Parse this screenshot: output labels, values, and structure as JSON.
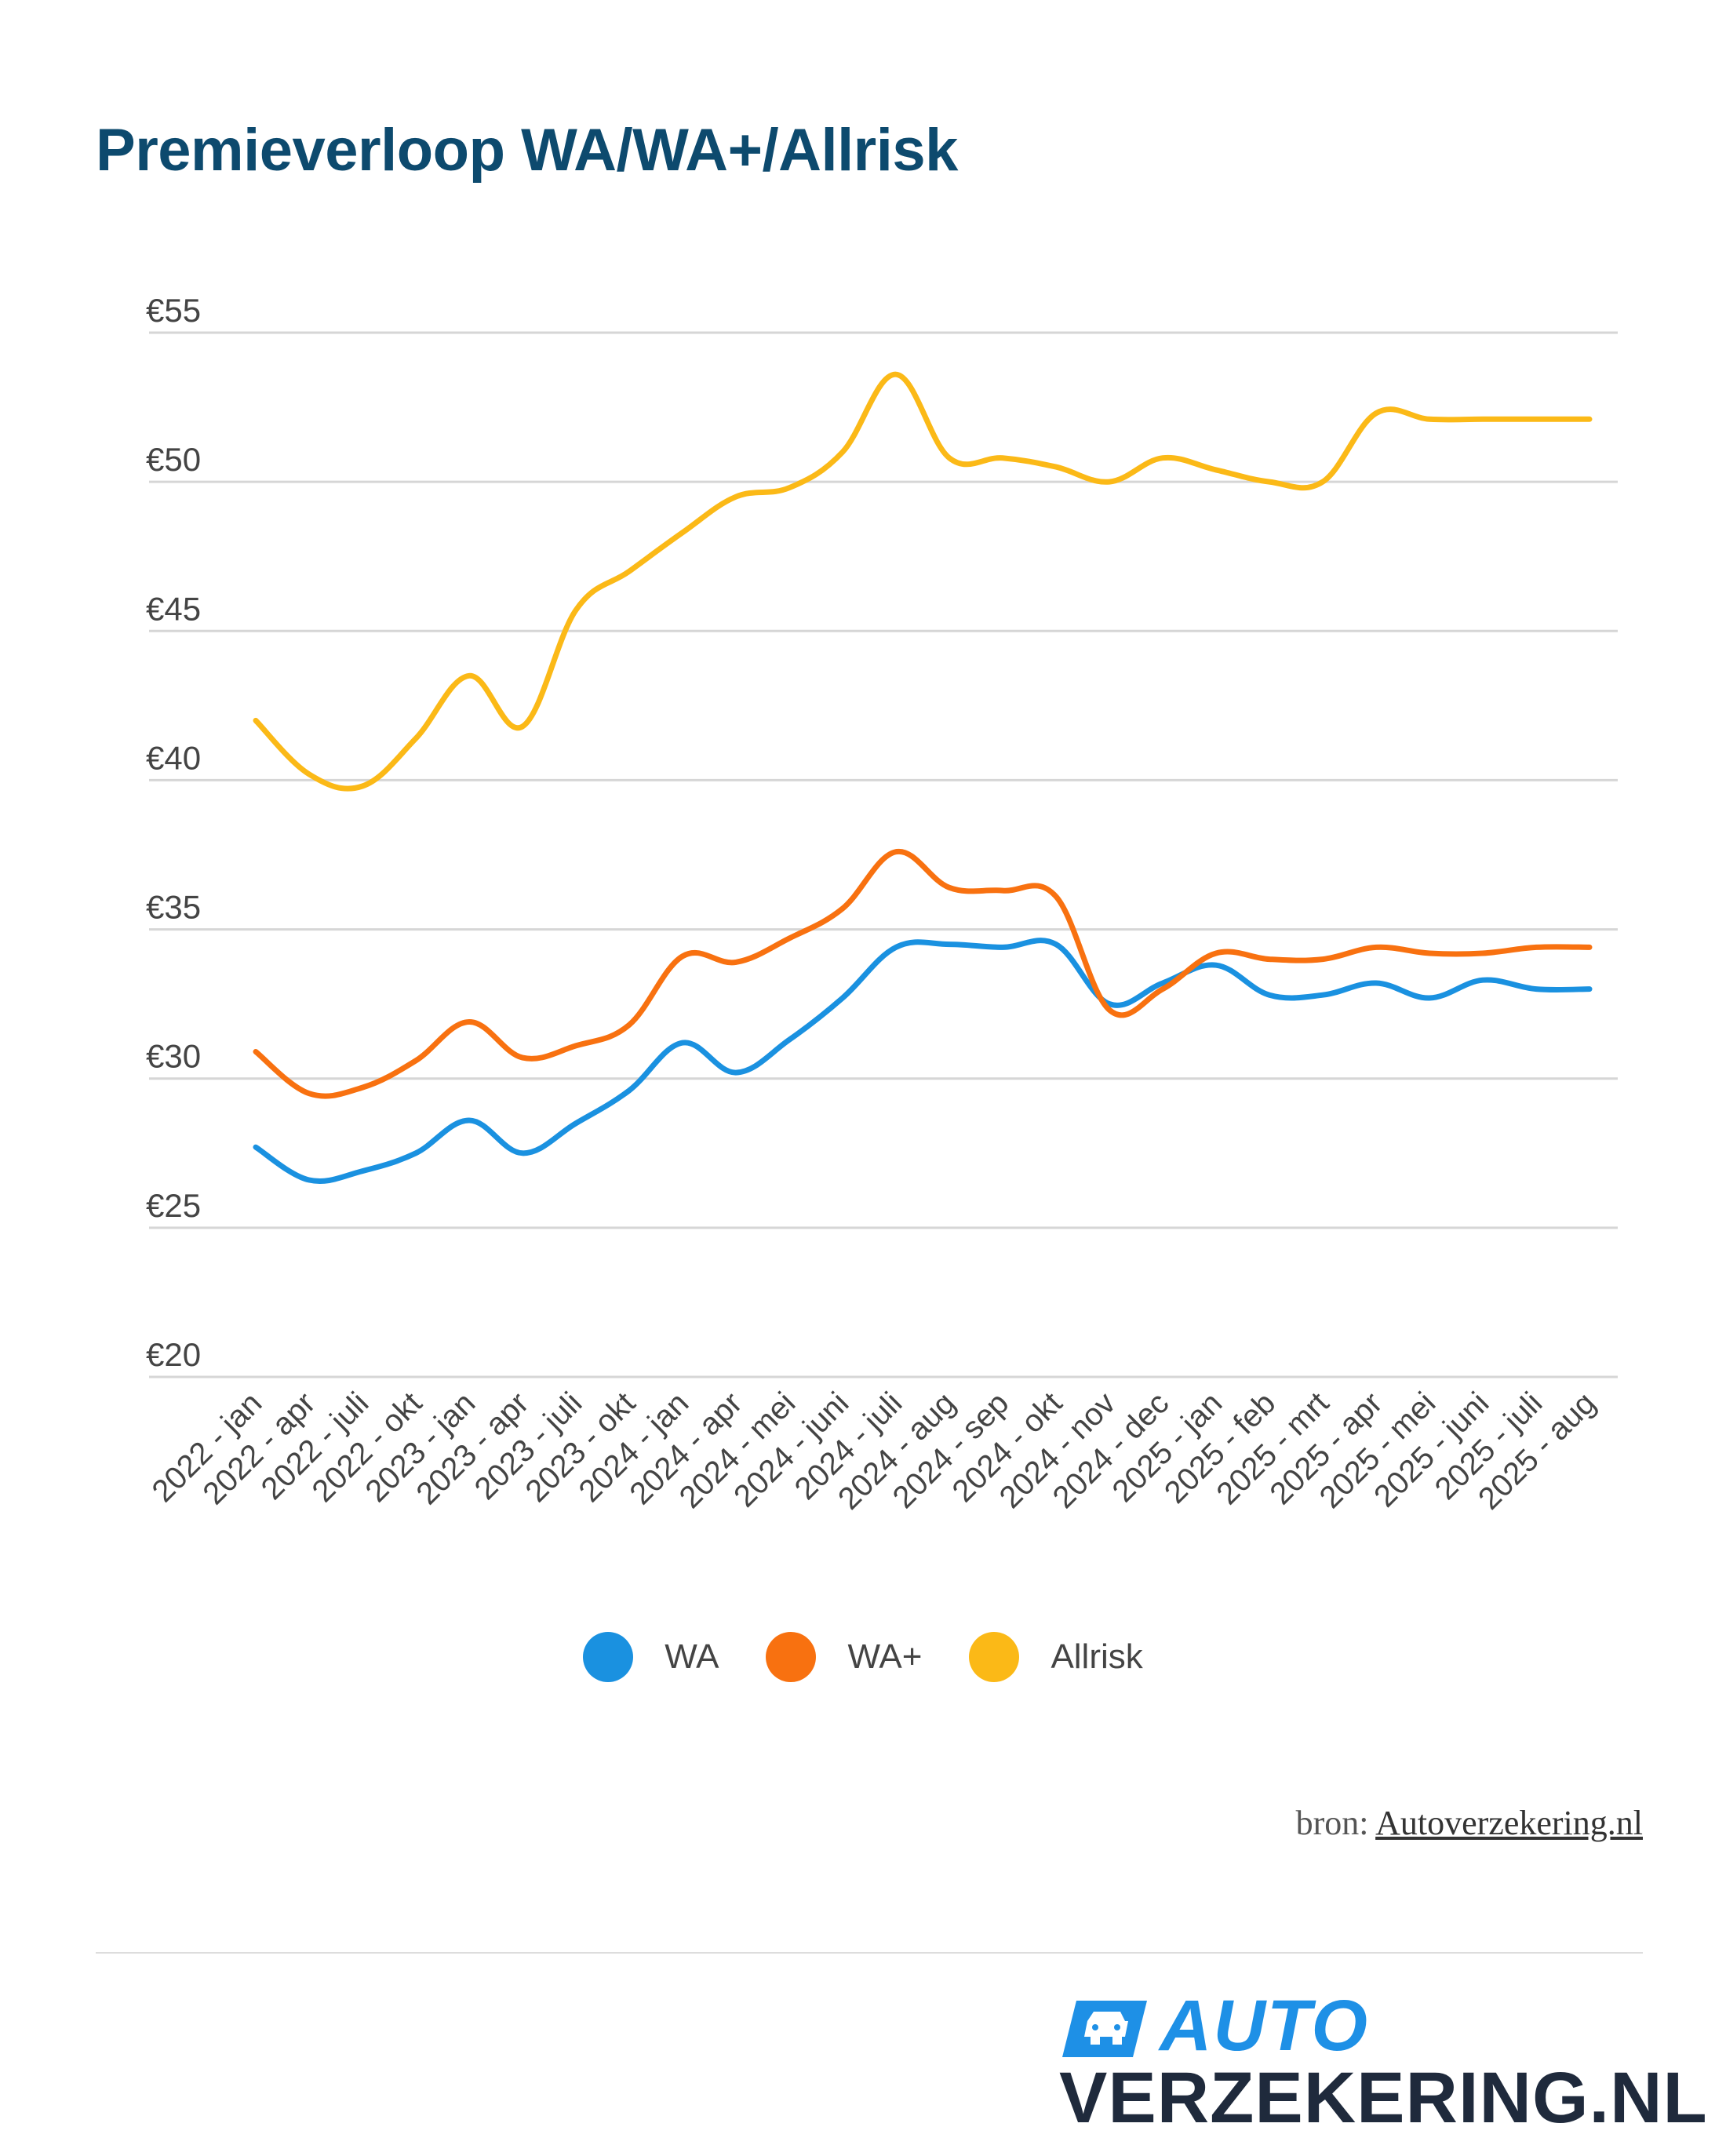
{
  "header": {
    "title": "Premieverloop WA/WA+/Allrisk"
  },
  "chart_data": {
    "type": "line",
    "title": "Premieverloop WA/WA+/Allrisk",
    "xlabel": "",
    "ylabel": "",
    "ylim": [
      20,
      55
    ],
    "yticks": [
      20,
      25,
      30,
      35,
      40,
      45,
      50,
      55
    ],
    "ytick_labels": [
      "€20",
      "€25",
      "€30",
      "€35",
      "€40",
      "€45",
      "€50",
      "€55"
    ],
    "grid": true,
    "legend_position": "bottom-center",
    "categories": [
      "2022 - jan",
      "2022 - apr",
      "2022 - juli",
      "2022 - okt",
      "2023 - jan",
      "2023 - apr",
      "2023 - juli",
      "2023 - okt",
      "2024 - jan",
      "2024 - apr",
      "2024 - mei",
      "2024 - juni",
      "2024 - juli",
      "2024 - aug",
      "2024 - sep",
      "2024 - okt",
      "2024 - nov",
      "2024 - dec",
      "2025 - jan",
      "2025 - feb",
      "2025 - mrt",
      "2025 - apr",
      "2025 - mei",
      "2025 - juni",
      "2025 - juli",
      "2025 - aug"
    ],
    "series": [
      {
        "name": "WA",
        "color": "#1a91e0",
        "values": [
          27.7,
          26.6,
          26.9,
          27.5,
          28.6,
          27.5,
          28.5,
          29.6,
          31.2,
          30.2,
          31.3,
          32.7,
          34.4,
          34.5,
          34.4,
          34.5,
          32.5,
          33.2,
          33.8,
          32.8,
          32.8,
          33.2,
          32.7,
          33.3,
          33.0,
          33.0
        ]
      },
      {
        "name": "WA+",
        "color": "#f87110",
        "values": [
          30.9,
          29.5,
          29.7,
          30.6,
          31.9,
          30.7,
          31.1,
          31.8,
          34.1,
          33.9,
          34.7,
          35.7,
          37.6,
          36.4,
          36.3,
          36.1,
          32.3,
          33.0,
          34.2,
          34.0,
          34.0,
          34.4,
          34.2,
          34.2,
          34.4,
          34.4
        ]
      },
      {
        "name": "Allrisk",
        "color": "#fbb917",
        "values": [
          42.0,
          40.2,
          39.8,
          41.4,
          43.5,
          41.8,
          45.7,
          47.0,
          48.3,
          49.5,
          49.8,
          51.0,
          53.6,
          50.8,
          50.8,
          50.5,
          50.0,
          50.8,
          50.4,
          50.0,
          50.0,
          52.3,
          52.1,
          52.1,
          52.1,
          52.1
        ]
      }
    ]
  },
  "legend": [
    {
      "label": "WA",
      "color": "#1a91e0"
    },
    {
      "label": "WA+",
      "color": "#f87110"
    },
    {
      "label": "Allrisk",
      "color": "#fbb917"
    }
  ],
  "footer": {
    "source_prefix": "bron:",
    "source_link": "Autoverzekering.nl"
  },
  "logo": {
    "line1": "AUTO",
    "line2": "VERZEKERING.NL"
  }
}
